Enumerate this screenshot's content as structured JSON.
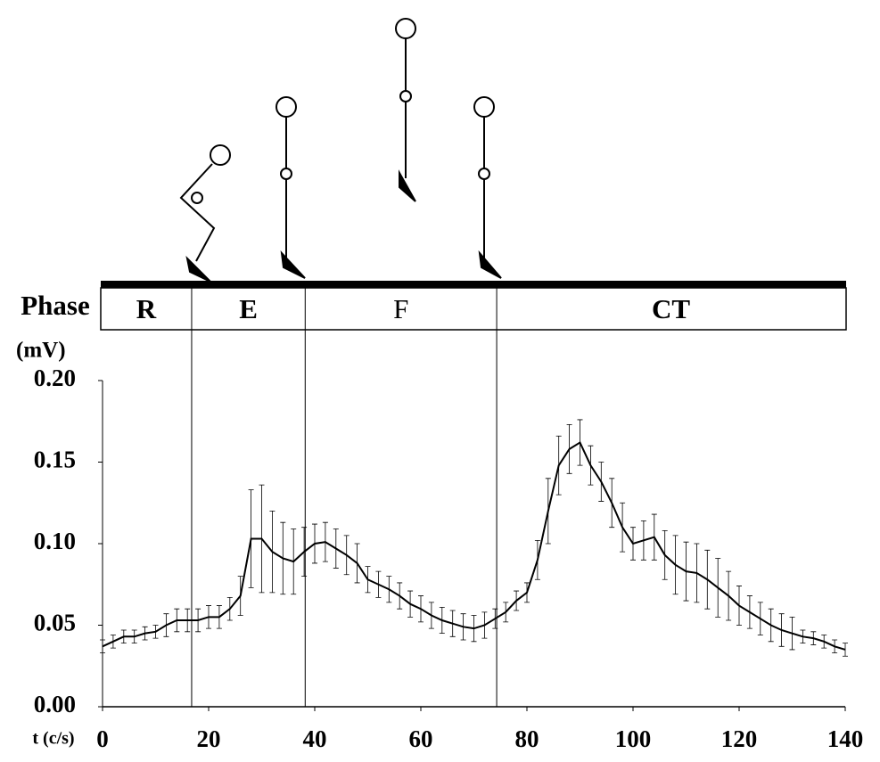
{
  "chart_data": {
    "type": "line",
    "y_label": "(mV)",
    "x_label": "t (c/s)",
    "phase_label": "Phase",
    "phases": [
      "R",
      "E",
      "F",
      "CT"
    ],
    "phase_boundaries": [
      16.8,
      38.2,
      74.3
    ],
    "x": [
      0,
      2,
      4,
      6,
      8,
      10,
      12,
      14,
      16,
      18,
      20,
      22,
      24,
      26,
      28,
      30,
      32,
      34,
      36,
      38,
      40,
      42,
      44,
      46,
      48,
      50,
      52,
      54,
      56,
      58,
      60,
      62,
      64,
      66,
      68,
      70,
      72,
      74,
      76,
      78,
      80,
      82,
      84,
      86,
      88,
      90,
      92,
      94,
      96,
      98,
      100,
      102,
      104,
      106,
      108,
      110,
      112,
      114,
      116,
      118,
      120,
      122,
      124,
      126,
      128,
      130,
      132,
      134,
      136,
      138,
      140
    ],
    "values": [
      0.037,
      0.04,
      0.043,
      0.043,
      0.045,
      0.046,
      0.05,
      0.053,
      0.053,
      0.053,
      0.055,
      0.055,
      0.06,
      0.068,
      0.103,
      0.103,
      0.095,
      0.091,
      0.089,
      0.095,
      0.1,
      0.101,
      0.097,
      0.093,
      0.088,
      0.078,
      0.075,
      0.072,
      0.068,
      0.063,
      0.06,
      0.056,
      0.053,
      0.051,
      0.049,
      0.048,
      0.05,
      0.054,
      0.058,
      0.065,
      0.07,
      0.09,
      0.12,
      0.148,
      0.158,
      0.162,
      0.148,
      0.138,
      0.125,
      0.11,
      0.1,
      0.102,
      0.104,
      0.093,
      0.087,
      0.083,
      0.082,
      0.078,
      0.073,
      0.068,
      0.062,
      0.058,
      0.054,
      0.05,
      0.047,
      0.045,
      0.043,
      0.042,
      0.04,
      0.037,
      0.035
    ],
    "errors": [
      0.004,
      0.004,
      0.004,
      0.004,
      0.004,
      0.004,
      0.007,
      0.007,
      0.007,
      0.007,
      0.007,
      0.007,
      0.007,
      0.012,
      0.03,
      0.033,
      0.025,
      0.022,
      0.02,
      0.015,
      0.012,
      0.012,
      0.012,
      0.012,
      0.012,
      0.008,
      0.008,
      0.008,
      0.008,
      0.008,
      0.008,
      0.008,
      0.008,
      0.008,
      0.008,
      0.008,
      0.008,
      0.006,
      0.006,
      0.006,
      0.006,
      0.012,
      0.02,
      0.018,
      0.015,
      0.014,
      0.012,
      0.012,
      0.015,
      0.015,
      0.01,
      0.012,
      0.014,
      0.015,
      0.018,
      0.018,
      0.018,
      0.018,
      0.018,
      0.015,
      0.012,
      0.01,
      0.01,
      0.01,
      0.01,
      0.01,
      0.004,
      0.004,
      0.004,
      0.004,
      0.004
    ],
    "color": "#000000",
    "xlim": [
      0,
      140
    ],
    "xticks": [
      0,
      20,
      40,
      60,
      80,
      100,
      120,
      140
    ],
    "ylim": [
      0,
      0.2
    ],
    "yticks": [
      {
        "value": 0,
        "label": "0.00"
      },
      0.05,
      {
        "value": 0.1,
        "label": "0.10"
      },
      0.15,
      {
        "value": 0.2,
        "label": "0.20"
      }
    ]
  }
}
